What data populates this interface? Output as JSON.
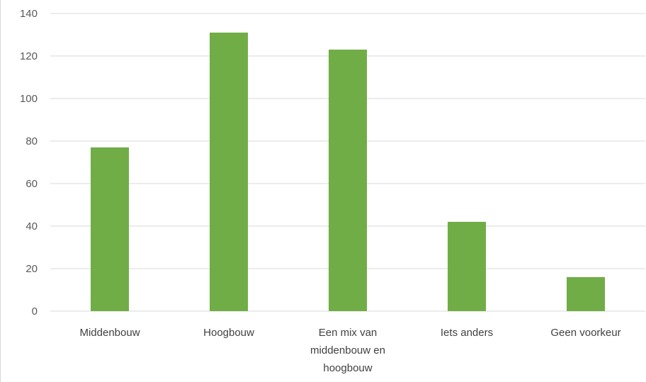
{
  "chart_data": {
    "type": "bar",
    "categories": [
      "Middenbouw",
      "Hoogbouw",
      "Een mix van middenbouw en hoogbouw",
      "Iets anders",
      "Geen voorkeur"
    ],
    "category_lines": [
      [
        "Middenbouw"
      ],
      [
        "Hoogbouw"
      ],
      [
        "Een mix van",
        "middenbouw en",
        "hoogbouw"
      ],
      [
        "Iets anders"
      ],
      [
        "Geen voorkeur"
      ]
    ],
    "values": [
      77,
      131,
      123,
      42,
      16
    ],
    "yticks": [
      "0",
      "20",
      "40",
      "60",
      "80",
      "100",
      "120",
      "140"
    ],
    "ylim": [
      0,
      140
    ],
    "grid": true,
    "title": "",
    "xlabel": "",
    "ylabel": "",
    "bar_color": "#70ad47",
    "grid_color": "#d9d9d9",
    "axis_color": "#d9d9d9"
  }
}
